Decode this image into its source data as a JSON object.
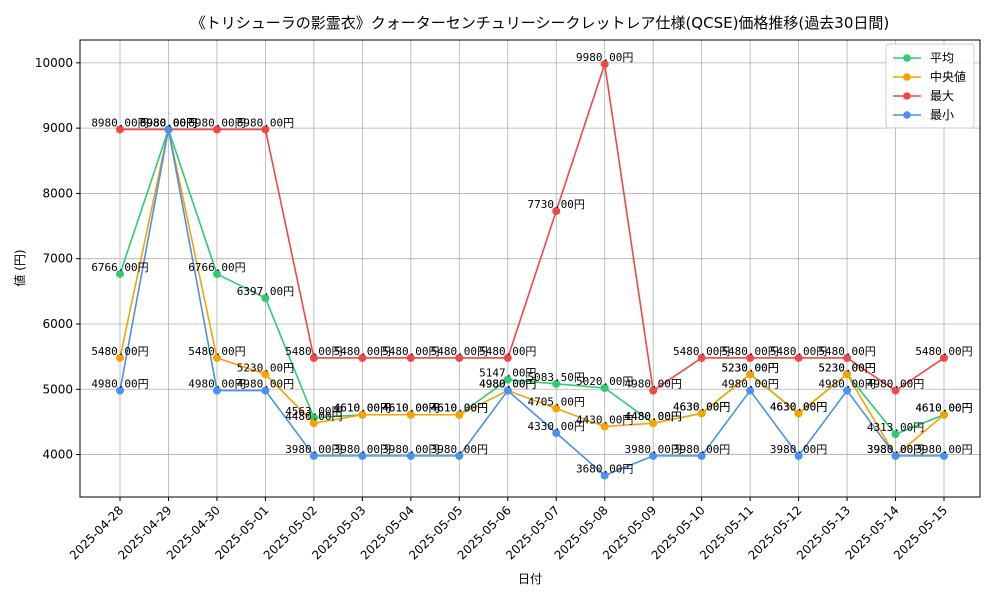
{
  "chart_data": {
    "type": "line",
    "title": "《トリシューラの影霊衣》クォーターセンチュリーシークレットレア仕様(QCSE)価格推移(過去30日間)",
    "xlabel": "日付",
    "ylabel": "値 (円)",
    "categories": [
      "2025-04-28",
      "2025-04-29",
      "2025-04-30",
      "2025-05-01",
      "2025-05-02",
      "2025-05-03",
      "2025-05-04",
      "2025-05-05",
      "2025-05-06",
      "2025-05-07",
      "2025-05-08",
      "2025-05-09",
      "2025-05-10",
      "2025-05-11",
      "2025-05-12",
      "2025-05-13",
      "2025-05-14",
      "2025-05-15"
    ],
    "ylim": [
      3350,
      10350
    ],
    "yticks": [
      4000,
      5000,
      6000,
      7000,
      8000,
      9000,
      10000
    ],
    "grid": true,
    "legend_position": "top-right",
    "value_suffix": "円",
    "series": [
      {
        "name": "平均",
        "color": "#2ecc71",
        "values": [
          6766,
          8980,
          6766,
          6397,
          4563,
          4610,
          4610,
          4610,
          5147,
          5083.5,
          5020,
          4480,
          4630,
          5230,
          4630,
          5230,
          4313,
          4610
        ]
      },
      {
        "name": "中央値",
        "color": "#f5a300",
        "values": [
          5480,
          8980,
          5480,
          5230,
          4480,
          4610,
          4610,
          4610,
          4980,
          4705,
          4430,
          4480,
          4630,
          5230,
          4630,
          5230,
          3980,
          4610
        ]
      },
      {
        "name": "最大",
        "color": "#f04848",
        "values": [
          8980,
          8980,
          8980,
          8980,
          5480,
          5480,
          5480,
          5480,
          5480,
          7730,
          9980,
          4980,
          5480,
          5480,
          5480,
          5480,
          4980,
          5480
        ]
      },
      {
        "name": "最小",
        "color": "#4a90ee",
        "values": [
          4980,
          8980,
          4980,
          4980,
          3980,
          3980,
          3980,
          3980,
          4980,
          4330,
          3680,
          3980,
          3980,
          4980,
          3980,
          4980,
          3980,
          3980
        ]
      }
    ]
  }
}
